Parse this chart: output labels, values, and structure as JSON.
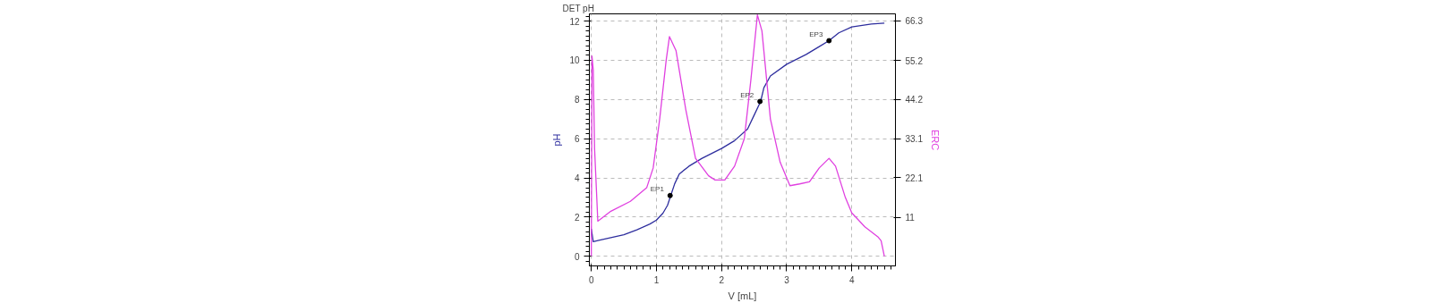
{
  "chart_data": {
    "type": "line",
    "title": "DET pH",
    "xlabel": "V [mL]",
    "ylabel": "pH",
    "y2label": "ERC",
    "xlim": [
      -0.03,
      4.67
    ],
    "xticks": [
      0,
      1,
      2,
      3,
      4
    ],
    "ylim": [
      -0.49,
      12.37
    ],
    "yticks": [
      0,
      2,
      4,
      6,
      8,
      10,
      12
    ],
    "y2lim": [
      -2.7,
      68.3
    ],
    "y2ticks": [
      11,
      22.1,
      33.1,
      44.2,
      55.2,
      66.3
    ],
    "grid": true,
    "series": [
      {
        "color": "#2e2e9e",
        "x": [
          0,
          0.03,
          0.1,
          0.3,
          0.5,
          0.7,
          0.9,
          1.0,
          1.1,
          1.17,
          1.22,
          1.28,
          1.35,
          1.5,
          1.7,
          2.0,
          2.2,
          2.4,
          2.5,
          2.6,
          2.65,
          2.75,
          3.0,
          3.3,
          3.5,
          3.65,
          3.8,
          4.0,
          4.3,
          4.5
        ],
        "values": [
          1.4,
          0.75,
          0.8,
          0.95,
          1.1,
          1.35,
          1.65,
          1.85,
          2.2,
          2.6,
          3.1,
          3.7,
          4.2,
          4.6,
          5.0,
          5.5,
          5.9,
          6.5,
          7.2,
          7.9,
          8.6,
          9.2,
          9.8,
          10.3,
          10.7,
          11.0,
          11.4,
          11.7,
          11.85,
          11.9
        ]
      },
      {
        "type": "line",
        "axis": "y2",
        "color": "#e040e0",
        "x": [
          0,
          0.01,
          0.03,
          0.05,
          0.1,
          0.3,
          0.6,
          0.85,
          0.95,
          1.05,
          1.15,
          1.2,
          1.3,
          1.45,
          1.6,
          1.8,
          1.9,
          2.05,
          2.2,
          2.35,
          2.45,
          2.55,
          2.62,
          2.75,
          2.9,
          3.05,
          3.2,
          3.35,
          3.5,
          3.65,
          3.75,
          3.9,
          4.0,
          4.2,
          4.4,
          4.45,
          4.5
        ],
        "values": [
          0,
          56.4,
          52.5,
          30.4,
          9.9,
          12.7,
          15.5,
          19.3,
          24.9,
          38.7,
          55.3,
          61.9,
          58.0,
          41.4,
          27.6,
          22.7,
          21.5,
          21.5,
          25.4,
          33.2,
          49.7,
          68.0,
          63.5,
          38.7,
          26.5,
          19.9,
          20.4,
          21.0,
          24.9,
          27.6,
          25.4,
          16.6,
          12.2,
          8.3,
          5.5,
          4.4,
          0
        ]
      },
      {
        "type": "scatter",
        "color": "#000000",
        "marker": "circle",
        "x": [
          1.21,
          2.59,
          3.65
        ],
        "values": [
          3.1,
          7.9,
          11.0
        ]
      }
    ],
    "annotations": [
      {
        "text": "EP1",
        "x": 1.21,
        "y": 3.1
      },
      {
        "text": "EP2",
        "x": 2.59,
        "y": 7.9
      },
      {
        "text": "EP3",
        "x": 3.65,
        "y": 11.0
      }
    ]
  }
}
